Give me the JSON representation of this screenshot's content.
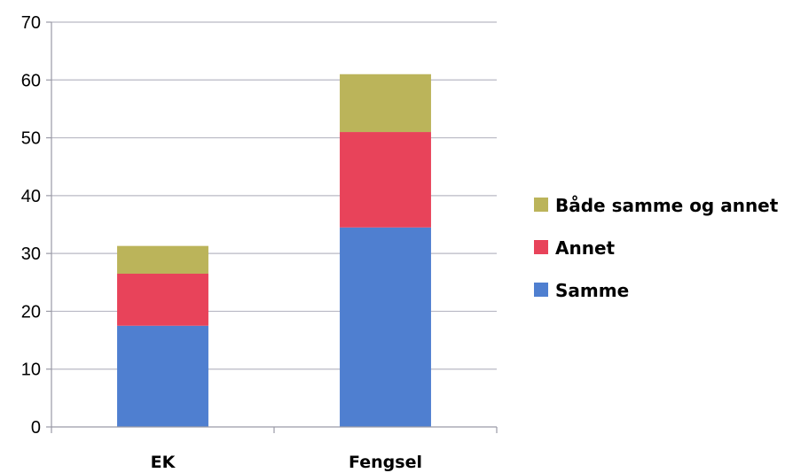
{
  "chart_data": {
    "type": "bar",
    "stacked": true,
    "categories": [
      "EK",
      "Fengsel"
    ],
    "series": [
      {
        "name": "Samme",
        "values": [
          17.5,
          34.5
        ],
        "color": "#4f7fd0"
      },
      {
        "name": "Annet",
        "values": [
          9,
          16.5
        ],
        "color": "#e8435a"
      },
      {
        "name": "Både samme og annet",
        "values": [
          4.8,
          10
        ],
        "color": "#bbb45a"
      }
    ],
    "legend_order": [
      "Både samme og annet",
      "Annet",
      "Samme"
    ],
    "ylim": [
      0,
      70
    ],
    "yticks": [
      0,
      10,
      20,
      30,
      40,
      50,
      60,
      70
    ],
    "grid": true,
    "legend": "right",
    "title": "",
    "xlabel": "",
    "ylabel": ""
  }
}
